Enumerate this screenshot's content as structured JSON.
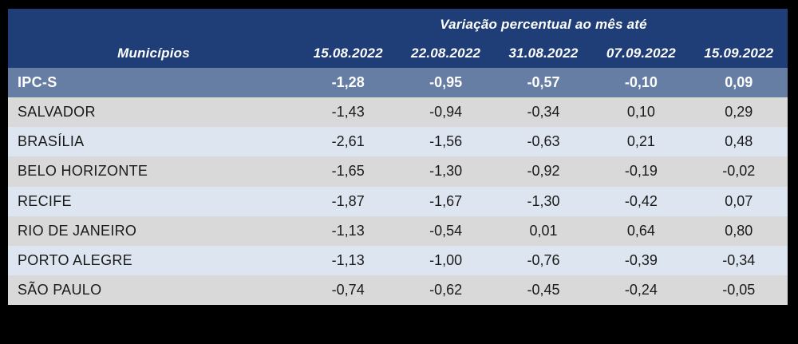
{
  "table": {
    "title": "Variação percentual ao mês até",
    "municipios_header": "Municípios",
    "date_columns": [
      "15.08.2022",
      "22.08.2022",
      "31.08.2022",
      "07.09.2022",
      "15.09.2022"
    ],
    "summary_row": {
      "label": "IPC-S",
      "values": [
        "-1,28",
        "-0,95",
        "-0,57",
        "-0,10",
        "0,09"
      ]
    },
    "rows": [
      {
        "label": "SALVADOR",
        "values": [
          "-1,43",
          "-0,94",
          "-0,34",
          "0,10",
          "0,29"
        ]
      },
      {
        "label": "BRASÍLIA",
        "values": [
          "-2,61",
          "-1,56",
          "-0,63",
          "0,21",
          "0,48"
        ]
      },
      {
        "label": "BELO HORIZONTE",
        "values": [
          "-1,65",
          "-1,30",
          "-0,92",
          "-0,19",
          "-0,02"
        ]
      },
      {
        "label": "RECIFE",
        "values": [
          "-1,87",
          "-1,67",
          "-1,30",
          "-0,42",
          "0,07"
        ]
      },
      {
        "label": "RIO DE JANEIRO",
        "values": [
          "-1,13",
          "-0,54",
          "0,01",
          "0,64",
          "0,80"
        ]
      },
      {
        "label": "PORTO ALEGRE",
        "values": [
          "-1,13",
          "-1,00",
          "-0,76",
          "-0,39",
          "-0,34"
        ]
      },
      {
        "label": "SÃO PAULO",
        "values": [
          "-0,74",
          "-0,62",
          "-0,45",
          "-0,24",
          "-0,05"
        ]
      }
    ],
    "colors": {
      "page_background": "#000000",
      "header_background": "#1F3E78",
      "summary_row_background": "#677EA4",
      "row_gray": "#D9D9D9",
      "row_blue": "#DDE6F0",
      "header_text": "#FFFFFF",
      "body_text": "#1A1A1A"
    }
  },
  "chart_data": {
    "type": "table",
    "title": "Variação percentual ao mês até",
    "row_header": "Municípios",
    "columns": [
      "15.08.2022",
      "22.08.2022",
      "31.08.2022",
      "07.09.2022",
      "15.09.2022"
    ],
    "rows": [
      {
        "name": "IPC-S",
        "values": [
          -1.28,
          -0.95,
          -0.57,
          -0.1,
          0.09
        ]
      },
      {
        "name": "SALVADOR",
        "values": [
          -1.43,
          -0.94,
          -0.34,
          0.1,
          0.29
        ]
      },
      {
        "name": "BRASÍLIA",
        "values": [
          -2.61,
          -1.56,
          -0.63,
          0.21,
          0.48
        ]
      },
      {
        "name": "BELO HORIZONTE",
        "values": [
          -1.65,
          -1.3,
          -0.92,
          -0.19,
          -0.02
        ]
      },
      {
        "name": "RECIFE",
        "values": [
          -1.87,
          -1.67,
          -1.3,
          -0.42,
          0.07
        ]
      },
      {
        "name": "RIO DE JANEIRO",
        "values": [
          -1.13,
          -0.54,
          0.01,
          0.64,
          0.8
        ]
      },
      {
        "name": "PORTO ALEGRE",
        "values": [
          -1.13,
          -1.0,
          -0.76,
          -0.39,
          -0.34
        ]
      },
      {
        "name": "SÃO PAULO",
        "values": [
          -0.74,
          -0.62,
          -0.45,
          -0.24,
          -0.05
        ]
      }
    ]
  }
}
